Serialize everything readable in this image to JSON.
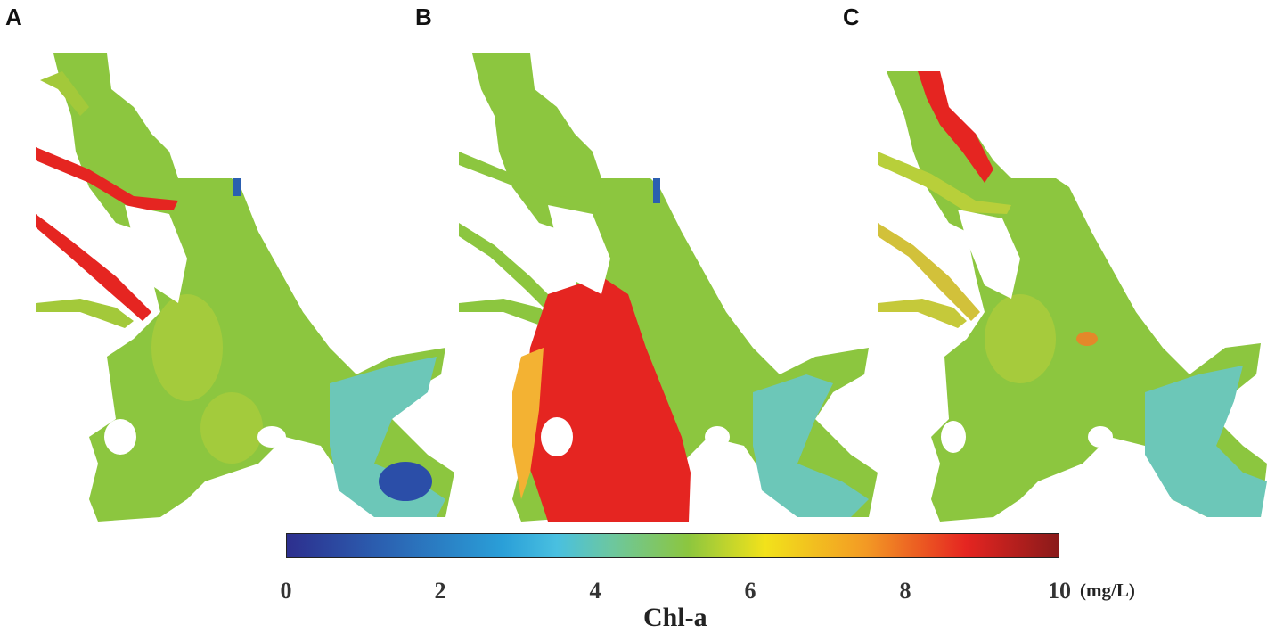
{
  "panels": [
    {
      "label": "A"
    },
    {
      "label": "B"
    },
    {
      "label": "C"
    }
  ],
  "colorbar": {
    "ticks": [
      "0",
      "2",
      "4",
      "6",
      "8",
      "10"
    ],
    "unit": "(mg/L)",
    "title": "Chl-a",
    "min": 0,
    "max": 10
  },
  "colors": {
    "low": "#2d2f8e",
    "low_mid": "#49c0e0",
    "mid": "#8cc63f",
    "high_mid": "#f2e21b",
    "high": "#e52521",
    "max": "#8a1a1a"
  }
}
